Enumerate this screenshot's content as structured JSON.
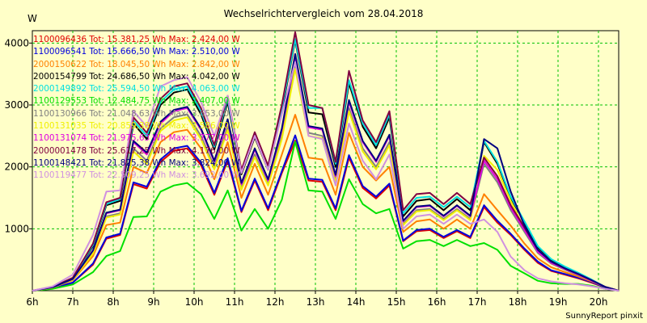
{
  "chart_data": {
    "type": "line",
    "title": "Wechselrichtervergleich vom 28.04.2018",
    "ylabel": "W",
    "footer": "SunnyReport pinxit",
    "x_ticks": [
      "6h",
      "7h",
      "8h",
      "9h",
      "10h",
      "11h",
      "12h",
      "13h",
      "14h",
      "15h",
      "16h",
      "17h",
      "18h",
      "19h",
      "20h"
    ],
    "x_range": [
      6,
      20.5
    ],
    "y_ticks": [
      "1000",
      "2000",
      "3000",
      "4000"
    ],
    "ylim": [
      0,
      4200
    ],
    "grid": true,
    "legend_position": "top-left",
    "x": [
      6.0,
      6.5,
      7.0,
      7.5,
      7.83,
      8.17,
      8.5,
      8.83,
      9.17,
      9.5,
      9.83,
      10.17,
      10.5,
      10.83,
      11.17,
      11.5,
      11.83,
      12.17,
      12.5,
      12.83,
      13.17,
      13.5,
      13.83,
      14.17,
      14.5,
      14.83,
      15.17,
      15.5,
      15.83,
      16.17,
      16.5,
      16.83,
      17.17,
      17.5,
      17.83,
      18.17,
      18.5,
      18.83,
      19.17,
      19.5,
      19.83,
      20.17,
      20.5
    ],
    "series": [
      {
        "name": "1100096436 Tot: 15.381,25 Wh Max: 2.424,00 W",
        "color": "#e00000",
        "values": [
          0,
          40,
          130,
          420,
          840,
          900,
          1720,
          1650,
          2080,
          2260,
          2300,
          2030,
          1550,
          2100,
          1270,
          1780,
          1300,
          1900,
          2424,
          1780,
          1760,
          1300,
          2150,
          1660,
          1490,
          1700,
          800,
          960,
          980,
          850,
          960,
          850,
          1350,
          1100,
          900,
          660,
          450,
          320,
          260,
          200,
          130,
          50,
          0
        ]
      },
      {
        "name": "1100096541 Tot: 15.666,50 Wh Max: 2.510,00 W",
        "color": "#0000dd",
        "values": [
          0,
          40,
          130,
          440,
          860,
          920,
          1750,
          1680,
          2120,
          2300,
          2340,
          2070,
          1580,
          2140,
          1290,
          1810,
          1330,
          1930,
          2510,
          1810,
          1790,
          1330,
          2190,
          1690,
          1520,
          1730,
          810,
          980,
          1000,
          870,
          980,
          870,
          1380,
          1130,
          920,
          680,
          470,
          330,
          270,
          210,
          140,
          50,
          0
        ]
      },
      {
        "name": "2000150622 Tot: 18.045,50 Wh Max: 2.842,00 W",
        "color": "#ff8000",
        "values": [
          0,
          50,
          170,
          560,
          1060,
          1100,
          2000,
          1900,
          2400,
          2560,
          2600,
          2300,
          1800,
          2400,
          1500,
          2050,
          1550,
          2200,
          2842,
          2150,
          2120,
          1550,
          2550,
          2000,
          1780,
          2000,
          950,
          1120,
          1150,
          1000,
          1150,
          1000,
          1560,
          1300,
          1050,
          760,
          520,
          380,
          300,
          230,
          150,
          60,
          0
        ]
      },
      {
        "name": "2000154799 Tot: 24.686,50 Wh Max: 4.042,00 W",
        "color": "#000000",
        "values": [
          0,
          60,
          200,
          720,
          1380,
          1450,
          2700,
          2450,
          3000,
          3200,
          3250,
          2850,
          2280,
          3050,
          1880,
          2480,
          1950,
          2900,
          4042,
          2880,
          2850,
          2000,
          3350,
          2650,
          2300,
          2800,
          1200,
          1450,
          1480,
          1300,
          1480,
          1300,
          2400,
          2050,
          1500,
          1100,
          700,
          500,
          380,
          280,
          170,
          60,
          0
        ]
      },
      {
        "name": "2000149892 Tot: 25.594,50 Wh Max: 4.063,00 W",
        "color": "#00e0e0",
        "values": [
          0,
          60,
          200,
          740,
          1400,
          1480,
          2750,
          2500,
          3050,
          3250,
          3300,
          2900,
          2320,
          3100,
          1920,
          2520,
          2000,
          2950,
          4063,
          2950,
          2950,
          2050,
          3400,
          2700,
          2350,
          2850,
          1250,
          1500,
          1520,
          1350,
          1520,
          1350,
          2420,
          2080,
          1520,
          1120,
          720,
          510,
          390,
          290,
          180,
          60,
          0
        ]
      },
      {
        "name": "1100129553 Tot: 12.484,75 Wh Max: 2.407,00 W",
        "color": "#00e000",
        "values": [
          0,
          30,
          100,
          300,
          560,
          640,
          1190,
          1200,
          1600,
          1700,
          1740,
          1560,
          1160,
          1620,
          970,
          1320,
          1000,
          1470,
          2407,
          1620,
          1600,
          1160,
          1800,
          1400,
          1250,
          1320,
          680,
          800,
          820,
          720,
          820,
          720,
          770,
          660,
          400,
          280,
          160,
          120,
          110,
          110,
          80,
          30,
          0
        ]
      },
      {
        "name": "1100130966 Tot: 21.048,63 Wh Max: 3.653,00 W",
        "color": "#808080",
        "values": [
          0,
          50,
          180,
          620,
          1200,
          1250,
          2300,
          2100,
          2620,
          2800,
          2850,
          2500,
          2000,
          2650,
          1660,
          2200,
          1720,
          2500,
          3653,
          2550,
          2500,
          1780,
          2950,
          2300,
          2000,
          2400,
          1080,
          1300,
          1320,
          1160,
          1320,
          1160,
          2050,
          1750,
          1300,
          950,
          610,
          440,
          340,
          250,
          160,
          60,
          0
        ]
      },
      {
        "name": "1100131035 Tot: 20.859,38 Wh Max: 3.586,00 W",
        "color": "#f0f000",
        "values": [
          0,
          50,
          180,
          600,
          1180,
          1230,
          2250,
          2050,
          2580,
          2750,
          2800,
          2450,
          1960,
          2600,
          1630,
          2160,
          1700,
          2450,
          3586,
          2500,
          2460,
          1750,
          2900,
          2250,
          1960,
          2350,
          1060,
          1280,
          1300,
          1140,
          1300,
          1140,
          2180,
          1950,
          1450,
          1000,
          640,
          460,
          350,
          260,
          160,
          60,
          0
        ]
      },
      {
        "name": "1100131074 Tot: 21.975,63 Wh Max: 3.777,00 W",
        "color": "#e000e0",
        "values": [
          0,
          55,
          190,
          650,
          1250,
          1300,
          2400,
          2200,
          2700,
          2900,
          2950,
          2600,
          2080,
          2750,
          1720,
          2280,
          1780,
          2600,
          3777,
          2640,
          2600,
          1850,
          3050,
          2400,
          2080,
          2500,
          1120,
          1350,
          1370,
          1200,
          1370,
          1200,
          2100,
          1800,
          1340,
          980,
          630,
          450,
          350,
          260,
          160,
          60,
          0
        ]
      },
      {
        "name": "2000001478 Tot: 25.617,25 Wh Max: 4.176,00 W",
        "color": "#800040",
        "values": [
          0,
          60,
          210,
          760,
          1430,
          1500,
          2800,
          2550,
          3100,
          3300,
          3350,
          2950,
          2350,
          3150,
          1950,
          2560,
          2020,
          3000,
          4176,
          3000,
          2950,
          2080,
          3550,
          2750,
          2400,
          2900,
          1300,
          1560,
          1580,
          1400,
          1580,
          1400,
          2150,
          1850,
          1380,
          1020,
          660,
          470,
          360,
          270,
          170,
          60,
          0
        ]
      },
      {
        "name": "1100148421 Tot: 21.825,38 Wh Max: 3.824,00 W",
        "color": "#000080",
        "values": [
          0,
          55,
          190,
          650,
          1260,
          1310,
          2420,
          2230,
          2730,
          2920,
          2970,
          2620,
          2100,
          2770,
          1740,
          2300,
          1800,
          2620,
          3824,
          2660,
          2620,
          1870,
          3080,
          2420,
          2100,
          2520,
          1130,
          1360,
          1380,
          1210,
          1380,
          1210,
          2450,
          2300,
          1600,
          1050,
          660,
          470,
          360,
          270,
          170,
          60,
          0
        ]
      },
      {
        "name": "1100119477 Tot: 22.509,25 Wh Max: 3.692,00 W",
        "color": "#d090e0",
        "values": [
          0,
          70,
          260,
          900,
          1600,
          1620,
          2900,
          2650,
          3300,
          3400,
          3450,
          3050,
          2500,
          3150,
          1900,
          2500,
          1950,
          2850,
          3692,
          2500,
          2450,
          1700,
          2700,
          2100,
          1800,
          2200,
          1000,
          1200,
          1230,
          1080,
          1230,
          1080,
          1150,
          950,
          550,
          330,
          200,
          150,
          120,
          100,
          70,
          30,
          0
        ]
      }
    ]
  }
}
